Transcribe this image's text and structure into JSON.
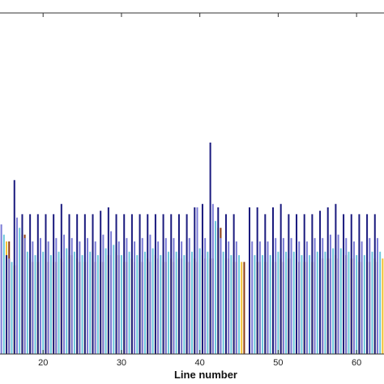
{
  "chart_data": {
    "type": "bar",
    "title": "",
    "xlabel": "Line number",
    "ylabel": "",
    "xlim": [
      14.5,
      63.5
    ],
    "ylim": [
      0,
      1
    ],
    "grid": false,
    "x_ticks": [
      20,
      30,
      40,
      50,
      60
    ],
    "x_tick_labels": [
      "20",
      "30",
      "40",
      "50",
      "60"
    ],
    "x": [
      15,
      16,
      17,
      18,
      19,
      20,
      21,
      22,
      23,
      24,
      25,
      26,
      27,
      28,
      29,
      30,
      31,
      32,
      33,
      34,
      35,
      36,
      37,
      38,
      39,
      40,
      41,
      42,
      43,
      44,
      45,
      46,
      47,
      48,
      49,
      50,
      51,
      52,
      53,
      54,
      55,
      56,
      57,
      58,
      59,
      60,
      61,
      62,
      63
    ],
    "series": [
      {
        "color": "#1a1a7e",
        "values": [
          0.48,
          0.29,
          0.51,
          0.41,
          0.41,
          0.41,
          0.41,
          0.41,
          0.44,
          0.41,
          0.41,
          0.41,
          0.41,
          0.42,
          0.43,
          0.41,
          0.41,
          0.41,
          0.41,
          0.41,
          0.41,
          0.41,
          0.41,
          0.41,
          0.41,
          0.43,
          0.44,
          0.62,
          0.43,
          0.41,
          0.41,
          null,
          0.43,
          0.43,
          0.41,
          0.43,
          0.44,
          0.41,
          0.41,
          0.41,
          0.41,
          0.42,
          0.43,
          0.44,
          0.41,
          0.41,
          0.41,
          0.41,
          0.41
        ]
      },
      {
        "color": "#7b7bd6",
        "values": [
          0.38,
          0.28,
          0.4,
          0.34,
          0.33,
          0.34,
          0.33,
          0.34,
          0.35,
          0.34,
          0.33,
          0.34,
          0.33,
          0.35,
          0.36,
          0.33,
          0.34,
          0.33,
          0.34,
          0.35,
          0.33,
          0.34,
          0.34,
          0.33,
          0.34,
          0.43,
          0.34,
          0.44,
          0.34,
          0.33,
          0.33,
          null,
          0.33,
          0.33,
          0.33,
          0.34,
          0.34,
          0.34,
          0.33,
          0.33,
          0.34,
          0.34,
          0.35,
          0.35,
          0.34,
          0.33,
          0.33,
          0.34,
          0.34
        ]
      },
      {
        "color": "#6cc8dc",
        "values": [
          0.35,
          0.27,
          0.37,
          0.3,
          0.29,
          0.3,
          0.29,
          0.3,
          0.31,
          0.3,
          0.29,
          0.3,
          0.29,
          0.31,
          0.32,
          0.29,
          0.3,
          0.29,
          0.3,
          0.31,
          0.29,
          0.3,
          0.3,
          0.29,
          0.3,
          0.31,
          0.3,
          0.39,
          0.3,
          0.29,
          0.29,
          null,
          0.29,
          0.29,
          0.29,
          0.3,
          0.3,
          0.3,
          0.29,
          0.29,
          0.3,
          0.3,
          0.31,
          0.31,
          0.3,
          0.29,
          0.29,
          0.3,
          0.3
        ]
      },
      {
        "color": "#f2c230",
        "values": [
          0.33,
          0.26,
          0.35,
          0.28,
          0.27,
          0.28,
          0.27,
          0.28,
          0.29,
          0.28,
          0.27,
          0.28,
          0.27,
          0.29,
          0.3,
          0.27,
          0.28,
          0.27,
          0.28,
          0.29,
          0.27,
          0.28,
          0.28,
          0.27,
          0.28,
          0.29,
          0.28,
          0.37,
          0.28,
          0.27,
          0.27,
          null,
          0.27,
          0.27,
          0.27,
          0.28,
          0.28,
          0.28,
          0.27,
          0.27,
          0.28,
          0.28,
          0.29,
          0.29,
          0.28,
          0.27,
          0.27,
          0.28,
          0.28
        ]
      },
      {
        "color": "#8b3a12",
        "values": [
          0.33,
          0.26,
          0.35,
          0.27,
          0.27,
          0.27,
          0.27,
          0.27,
          0.29,
          0.27,
          0.27,
          0.27,
          0.27,
          0.29,
          0.29,
          0.27,
          0.27,
          0.27,
          0.27,
          0.28,
          0.27,
          0.27,
          0.28,
          0.27,
          0.27,
          0.28,
          0.28,
          0.37,
          0.28,
          0.27,
          0.27,
          null,
          0.27,
          0.27,
          0.27,
          0.27,
          0.28,
          0.27,
          0.27,
          0.27,
          0.28,
          0.28,
          0.28,
          0.29,
          0.28,
          0.27,
          0.27,
          0.27,
          0.28
        ]
      }
    ]
  }
}
